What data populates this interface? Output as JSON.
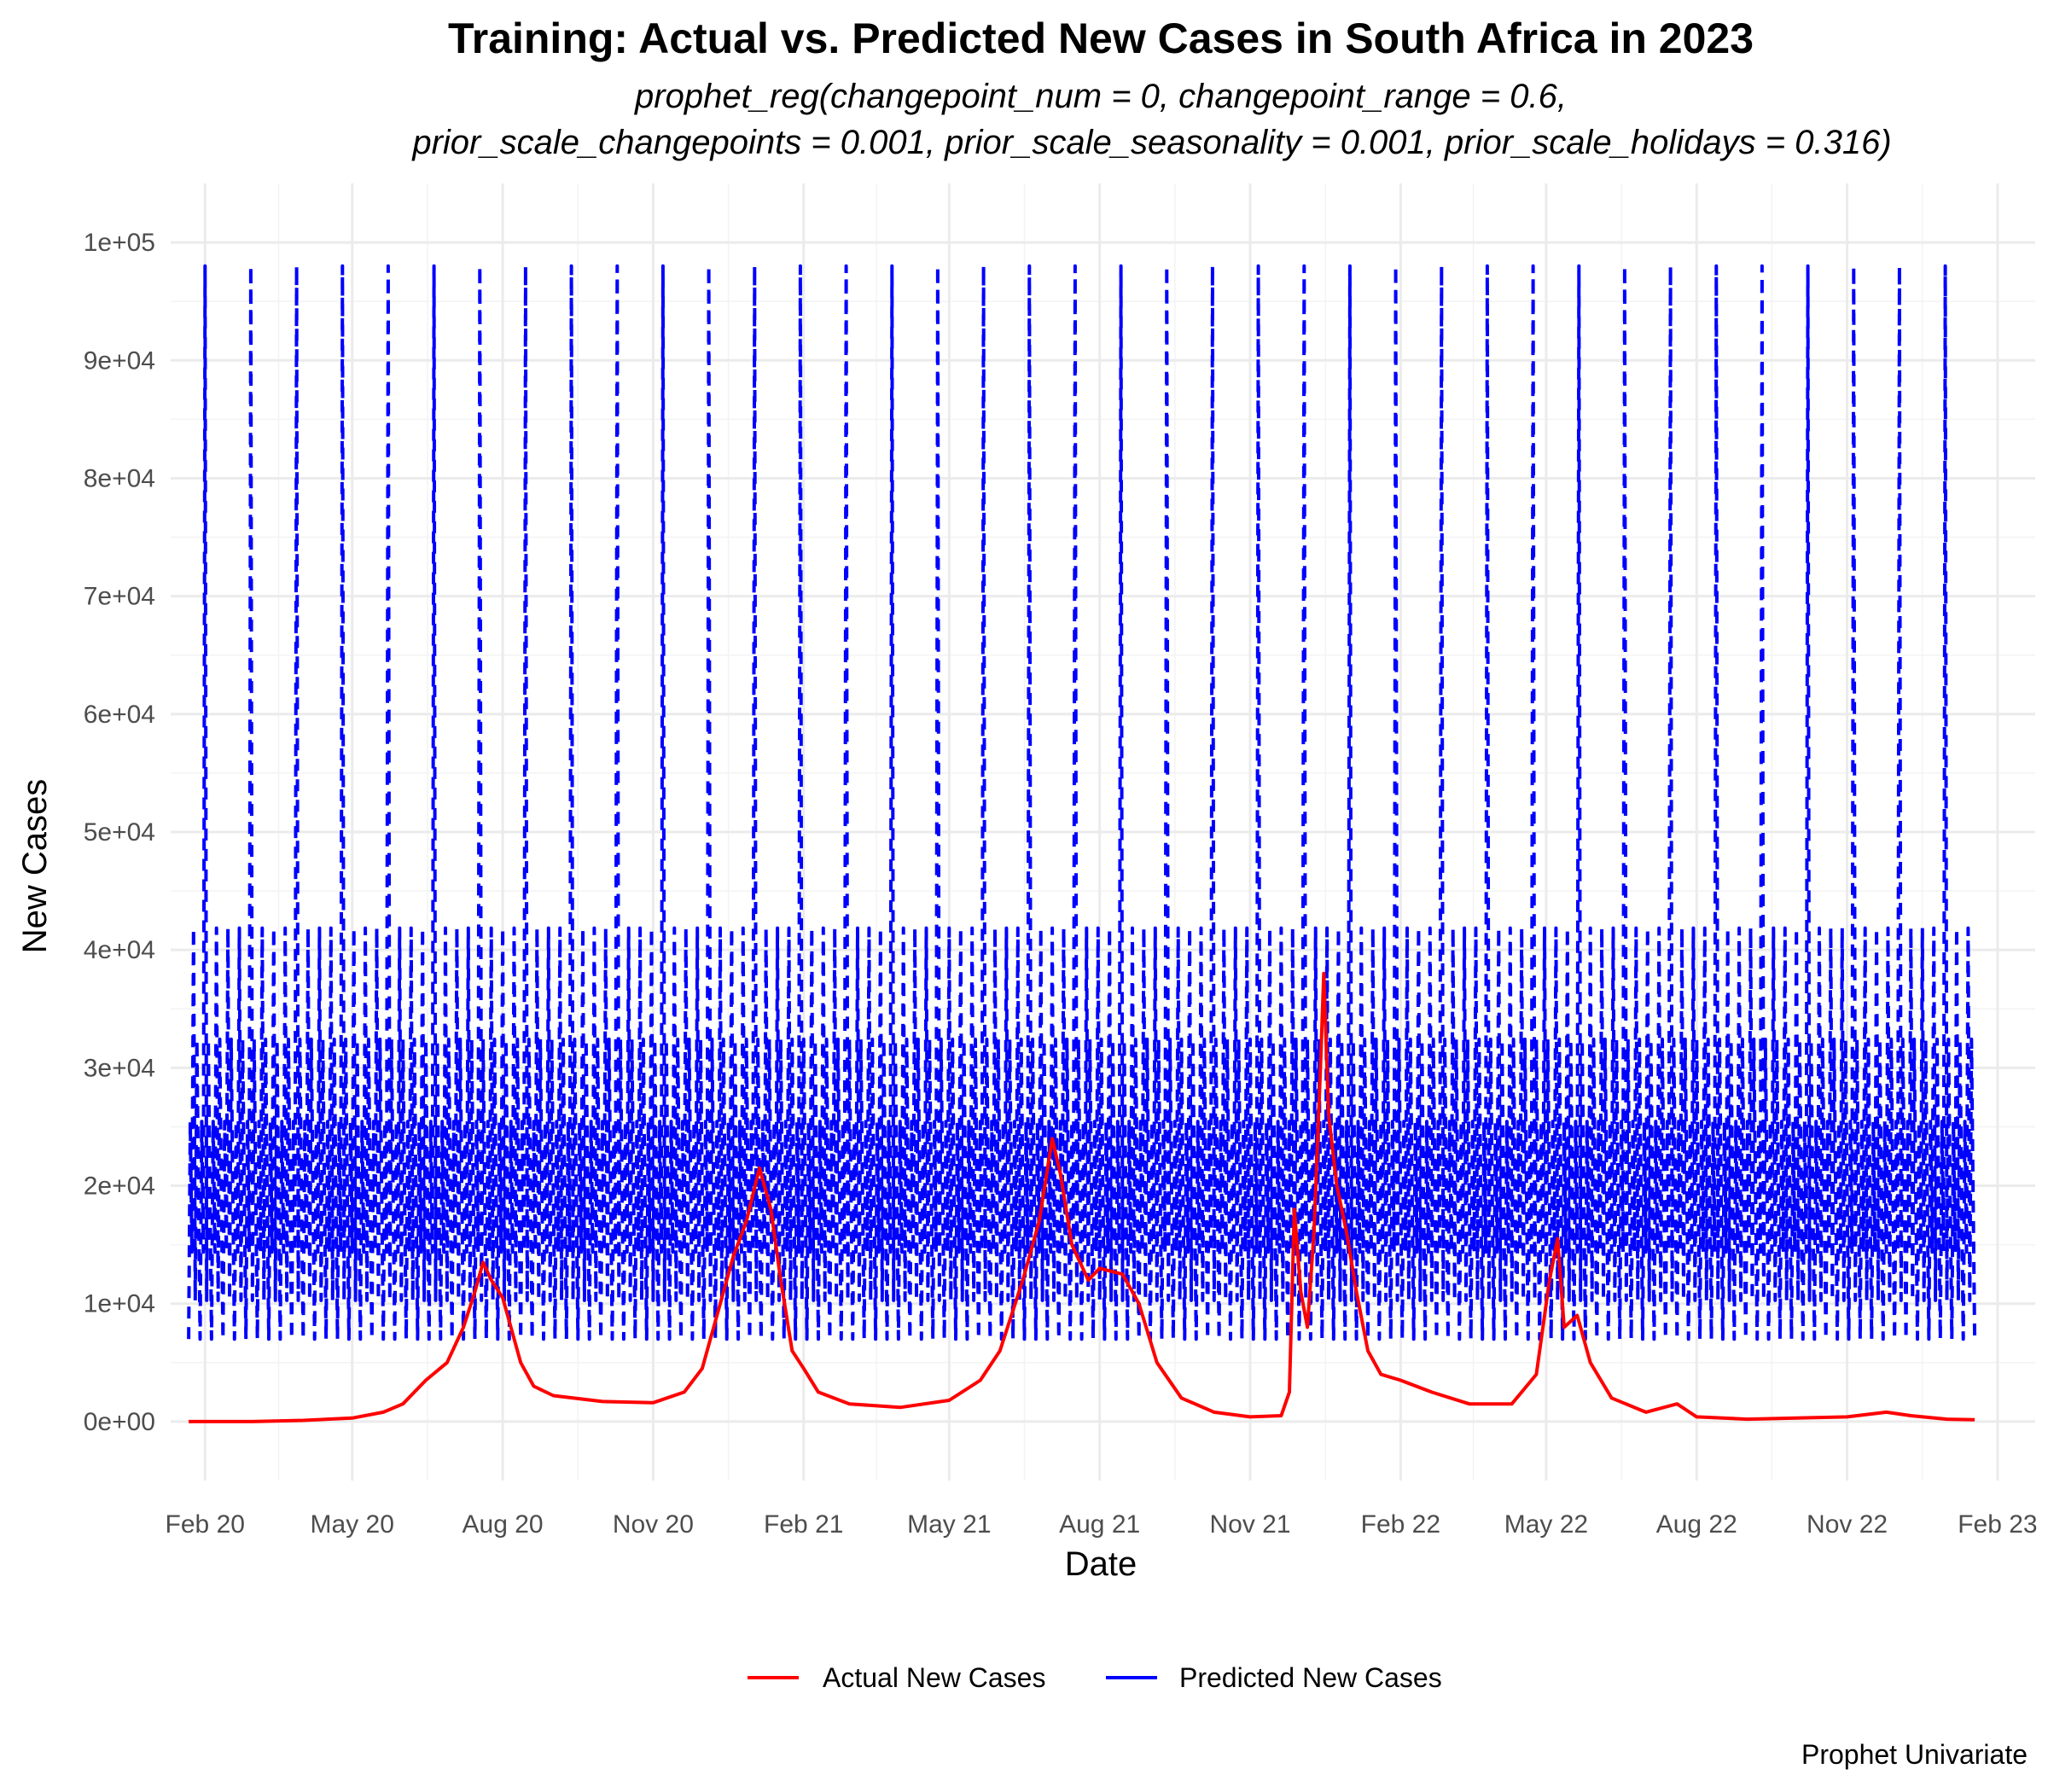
{
  "chart_data": {
    "type": "line",
    "title": "Training: Actual vs. Predicted New Cases in South Africa in 2023",
    "subtitle_lines": [
      "prophet_reg(changepoint_num = 0, changepoint_range = 0.6,",
      "prior_scale_changepoints = 0.001, prior_scale_seasonality = 0.001, prior_scale_holidays = 0.316)"
    ],
    "xlabel": "Date",
    "ylabel": "New Cases",
    "caption": "Prophet Univariate",
    "xlim": [
      "2020-01-11",
      "2023-02-24"
    ],
    "ylim": [
      -5000,
      105000
    ],
    "x_ticks": [
      {
        "date": "2020-02-01",
        "label": "Feb 20"
      },
      {
        "date": "2020-05-01",
        "label": "May 20"
      },
      {
        "date": "2020-08-01",
        "label": "Aug 20"
      },
      {
        "date": "2020-11-01",
        "label": "Nov 20"
      },
      {
        "date": "2021-02-01",
        "label": "Feb 21"
      },
      {
        "date": "2021-05-01",
        "label": "May 21"
      },
      {
        "date": "2021-08-01",
        "label": "Aug 21"
      },
      {
        "date": "2021-11-01",
        "label": "Nov 21"
      },
      {
        "date": "2022-02-01",
        "label": "Feb 22"
      },
      {
        "date": "2022-05-01",
        "label": "May 22"
      },
      {
        "date": "2022-08-01",
        "label": "Aug 22"
      },
      {
        "date": "2022-11-01",
        "label": "Nov 22"
      },
      {
        "date": "2023-02-01",
        "label": "Feb 23"
      }
    ],
    "y_ticks": [
      {
        "value": 0,
        "label": "0e+00"
      },
      {
        "value": 10000,
        "label": "1e+04"
      },
      {
        "value": 20000,
        "label": "2e+04"
      },
      {
        "value": 30000,
        "label": "3e+04"
      },
      {
        "value": 40000,
        "label": "4e+04"
      },
      {
        "value": 50000,
        "label": "5e+04"
      },
      {
        "value": 60000,
        "label": "6e+04"
      },
      {
        "value": 70000,
        "label": "7e+04"
      },
      {
        "value": 80000,
        "label": "8e+04"
      },
      {
        "value": 90000,
        "label": "9e+04"
      },
      {
        "value": 100000,
        "label": "1e+05"
      }
    ],
    "grid": true,
    "legend_position": "bottom",
    "series": [
      {
        "name": "Actual New Cases",
        "color": "#ff0000",
        "line_style": "solid",
        "points": [
          [
            "2020-01-22",
            0
          ],
          [
            "2020-03-01",
            0
          ],
          [
            "2020-04-01",
            100
          ],
          [
            "2020-05-01",
            300
          ],
          [
            "2020-05-20",
            800
          ],
          [
            "2020-06-01",
            1500
          ],
          [
            "2020-06-15",
            3500
          ],
          [
            "2020-06-28",
            5000
          ],
          [
            "2020-07-08",
            8000
          ],
          [
            "2020-07-15",
            11000
          ],
          [
            "2020-07-20",
            13500
          ],
          [
            "2020-07-25",
            12000
          ],
          [
            "2020-08-01",
            10500
          ],
          [
            "2020-08-06",
            8000
          ],
          [
            "2020-08-12",
            5000
          ],
          [
            "2020-08-20",
            3000
          ],
          [
            "2020-09-01",
            2200
          ],
          [
            "2020-10-01",
            1700
          ],
          [
            "2020-11-01",
            1600
          ],
          [
            "2020-11-20",
            2500
          ],
          [
            "2020-12-01",
            4500
          ],
          [
            "2020-12-10",
            9000
          ],
          [
            "2020-12-20",
            14000
          ],
          [
            "2020-12-28",
            17000
          ],
          [
            "2021-01-05",
            21500
          ],
          [
            "2021-01-12",
            18000
          ],
          [
            "2021-01-18",
            12000
          ],
          [
            "2021-01-25",
            6000
          ],
          [
            "2021-02-01",
            4500
          ],
          [
            "2021-02-10",
            2500
          ],
          [
            "2021-03-01",
            1500
          ],
          [
            "2021-04-01",
            1200
          ],
          [
            "2021-05-01",
            1800
          ],
          [
            "2021-05-20",
            3500
          ],
          [
            "2021-06-01",
            6000
          ],
          [
            "2021-06-15",
            12000
          ],
          [
            "2021-06-25",
            17000
          ],
          [
            "2021-07-03",
            24000
          ],
          [
            "2021-07-08",
            21000
          ],
          [
            "2021-07-15",
            15000
          ],
          [
            "2021-07-25",
            12000
          ],
          [
            "2021-08-01",
            13000
          ],
          [
            "2021-08-15",
            12500
          ],
          [
            "2021-08-25",
            10000
          ],
          [
            "2021-09-05",
            5000
          ],
          [
            "2021-09-20",
            2000
          ],
          [
            "2021-10-10",
            800
          ],
          [
            "2021-11-01",
            400
          ],
          [
            "2021-11-20",
            500
          ],
          [
            "2021-11-25",
            2500
          ],
          [
            "2021-11-28",
            18000
          ],
          [
            "2021-12-02",
            11000
          ],
          [
            "2021-12-06",
            8000
          ],
          [
            "2021-12-10",
            16000
          ],
          [
            "2021-12-14",
            30000
          ],
          [
            "2021-12-16",
            38000
          ],
          [
            "2021-12-19",
            26000
          ],
          [
            "2021-12-24",
            20000
          ],
          [
            "2021-12-30",
            16000
          ],
          [
            "2022-01-05",
            11000
          ],
          [
            "2022-01-12",
            6000
          ],
          [
            "2022-01-20",
            4000
          ],
          [
            "2022-02-01",
            3500
          ],
          [
            "2022-02-20",
            2500
          ],
          [
            "2022-03-15",
            1500
          ],
          [
            "2022-04-10",
            1500
          ],
          [
            "2022-04-25",
            4000
          ],
          [
            "2022-05-03",
            12000
          ],
          [
            "2022-05-08",
            15500
          ],
          [
            "2022-05-12",
            8000
          ],
          [
            "2022-05-20",
            9000
          ],
          [
            "2022-05-28",
            5000
          ],
          [
            "2022-06-10",
            2000
          ],
          [
            "2022-07-01",
            800
          ],
          [
            "2022-07-20",
            1500
          ],
          [
            "2022-08-01",
            400
          ],
          [
            "2022-09-01",
            200
          ],
          [
            "2022-10-01",
            300
          ],
          [
            "2022-11-01",
            400
          ],
          [
            "2022-11-25",
            800
          ],
          [
            "2022-12-10",
            500
          ],
          [
            "2023-01-01",
            200
          ],
          [
            "2023-01-18",
            150
          ]
        ]
      },
      {
        "name": "Predicted New Cases",
        "color": "#0000ff",
        "line_style": "dashed",
        "range_start": "2020-01-22",
        "range_end": "2023-01-18",
        "baseline": 7000,
        "weekly_peak": 48000,
        "spike_peak": 98000,
        "spike_period_days": 28
      }
    ]
  }
}
